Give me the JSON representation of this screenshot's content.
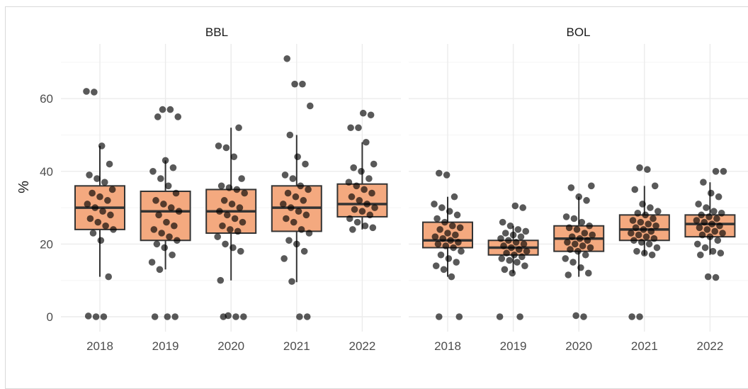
{
  "colors": {
    "box_fill": "#f4a97f",
    "box_stroke": "#333333",
    "point": "#000000",
    "grid_major": "#ebebeb",
    "grid_minor": "#f5f5f5"
  },
  "chart_data": {
    "type": "boxplot",
    "ylabel": "%",
    "ylim": [
      -7,
      75
    ],
    "yticks": [
      0,
      20,
      40,
      60
    ],
    "categories": [
      "2018",
      "2019",
      "2020",
      "2021",
      "2022"
    ],
    "grid": true,
    "panels": [
      {
        "strip": "BBL",
        "boxes": [
          {
            "category": "2018",
            "q1": 24,
            "median": 30,
            "q3": 36,
            "whisker_low": 11,
            "whisker_high": 47,
            "points": [
              62,
              61.8,
              47,
              42,
              39,
              38,
              37,
              35,
              34,
              33,
              32,
              31,
              30,
              29,
              28,
              27,
              26,
              25,
              24,
              23,
              21,
              11,
              0.2,
              0,
              0
            ]
          },
          {
            "category": "2019",
            "q1": 21,
            "median": 29,
            "q3": 34.5,
            "whisker_low": 13,
            "whisker_high": 43,
            "points": [
              57,
              57,
              55,
              55,
              43,
              41,
              40,
              38,
              36,
              34,
              32,
              31,
              30,
              29,
              28,
              26,
              25,
              24,
              23,
              22,
              21,
              20,
              19,
              17,
              15,
              13,
              0,
              0,
              0
            ]
          },
          {
            "category": "2020",
            "q1": 23,
            "median": 29,
            "q3": 35,
            "whisker_low": 10,
            "whisker_high": 52,
            "points": [
              52,
              47,
              46.5,
              44,
              38,
              36,
              35.5,
              35,
              34,
              32,
              31,
              30,
              29,
              28,
              27,
              26,
              25,
              24,
              23.5,
              22,
              20,
              19,
              18,
              10,
              0.3,
              0,
              0,
              0
            ]
          },
          {
            "category": "2021",
            "q1": 23.5,
            "median": 30,
            "q3": 36,
            "whisker_low": 9.5,
            "whisker_high": 50,
            "points": [
              71,
              64,
              64,
              58,
              50,
              44,
              42,
              39,
              38,
              36,
              35,
              34,
              33,
              32,
              31,
              30,
              29,
              28,
              27,
              26,
              24,
              23,
              21,
              20,
              18,
              16,
              9.7,
              0,
              0
            ]
          },
          {
            "category": "2022",
            "q1": 27.5,
            "median": 31,
            "q3": 36.5,
            "whisker_low": 24,
            "whisker_high": 48,
            "points": [
              56,
              55.5,
              52,
              52,
              48,
              42,
              41,
              40,
              38,
              37,
              36,
              35,
              34,
              33,
              32,
              31,
              30,
              29.5,
              29,
              28,
              27,
              26,
              25,
              24.5,
              24
            ]
          }
        ]
      },
      {
        "strip": "BOL",
        "boxes": [
          {
            "category": "2018",
            "q1": 19,
            "median": 21,
            "q3": 26,
            "whisker_low": 11,
            "whisker_high": 33,
            "points": [
              39.5,
              39,
              33,
              31,
              30,
              29,
              28,
              27,
              26,
              25,
              24.5,
              24,
              23,
              22.5,
              22,
              21.5,
              21,
              20.5,
              20,
              19.5,
              19,
              18,
              17,
              16,
              15,
              14,
              13,
              11,
              0,
              0
            ]
          },
          {
            "category": "2019",
            "q1": 17,
            "median": 19,
            "q3": 21,
            "whisker_low": 12,
            "whisker_high": 25,
            "points": [
              30.5,
              30,
              26,
              25,
              24,
              23.5,
              23,
              22.5,
              22,
              21.5,
              21,
              20.5,
              20,
              19.5,
              19,
              18.5,
              18,
              17.5,
              17,
              16.5,
              16,
              15.5,
              15,
              14,
              13,
              12,
              0,
              0
            ]
          },
          {
            "category": "2020",
            "q1": 18,
            "median": 21.5,
            "q3": 25,
            "whisker_low": 11,
            "whisker_high": 33,
            "points": [
              36,
              35.5,
              33,
              32,
              27.5,
              27,
              26,
              25,
              24.5,
              24,
              23,
              22.5,
              22,
              21.5,
              21,
              20.5,
              20,
              19.5,
              19,
              18.5,
              18,
              17,
              16,
              15,
              13.5,
              12,
              11.5,
              0.3,
              0
            ]
          },
          {
            "category": "2021",
            "q1": 21,
            "median": 24,
            "q3": 28,
            "whisker_low": 17,
            "whisker_high": 36,
            "points": [
              41,
              40.5,
              36,
              35,
              31,
              30,
              29,
              28.5,
              28,
              27,
              26.5,
              26,
              25.5,
              25,
              24.5,
              24,
              23.5,
              23,
              22.5,
              22,
              21.5,
              21,
              20.5,
              20,
              19,
              18,
              17.5,
              17,
              0,
              0
            ]
          },
          {
            "category": "2022",
            "q1": 22,
            "median": 25.5,
            "q3": 28,
            "whisker_low": 17,
            "whisker_high": 37,
            "points": [
              40,
              40,
              37,
              34,
              33,
              31,
              30,
              29,
              28.5,
              28,
              27.5,
              27,
              26.5,
              26,
              25.5,
              25,
              24.5,
              24,
              23.5,
              23,
              22.5,
              22,
              21,
              20,
              19,
              18,
              17.5,
              17,
              11,
              10.8
            ]
          }
        ]
      }
    ]
  }
}
